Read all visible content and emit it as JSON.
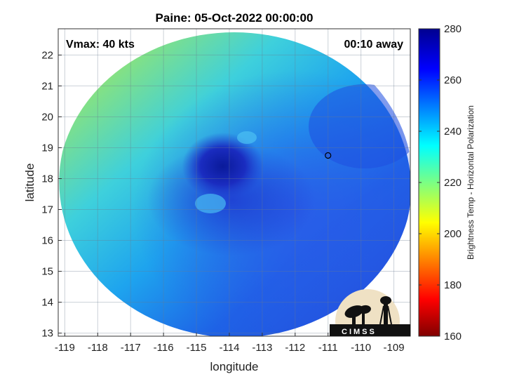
{
  "title": "Paine: 05-Oct-2022 00:00:00",
  "annotations": {
    "vmax": "Vmax: 40 kts",
    "time_offset": "00:10 away"
  },
  "map": {
    "xlabel": "longitude",
    "ylabel": "latitude",
    "xlim": [
      -119.2,
      -108.5
    ],
    "ylim": [
      12.9,
      22.85
    ],
    "x_ticks": [
      -119,
      -118,
      -117,
      -116,
      -115,
      -114,
      -113,
      -112,
      -111,
      -110,
      -109
    ],
    "y_ticks": [
      13,
      14,
      15,
      16,
      17,
      18,
      19,
      20,
      21,
      22
    ],
    "grid": true,
    "swath_center": [
      -113.8,
      17.9
    ],
    "storm_center": [
      -114.2,
      18.4
    ],
    "island_marker": [
      -111.0,
      18.75
    ]
  },
  "colorbar": {
    "label": "Brightness Temp - Horizontal Polarization",
    "min": 160,
    "max": 280,
    "ticks": [
      160,
      180,
      200,
      220,
      240,
      260,
      280
    ],
    "colormap": "jet"
  },
  "logo": {
    "text": "CIMSS"
  }
}
